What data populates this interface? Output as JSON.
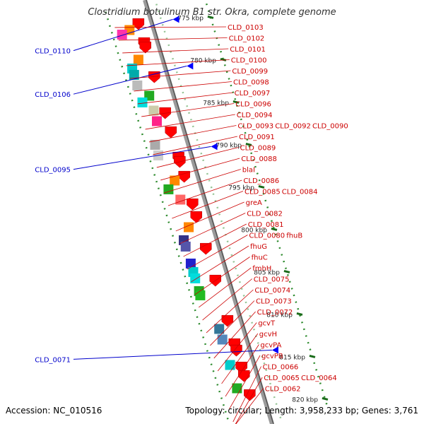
{
  "title": "Clostridium botulinum B1 str. Okra, complete genome",
  "footer": {
    "accession": "Accession: NC_010516",
    "summary": "Topology: circular; Length: 3,958,233 bp; Genes: 3,761"
  },
  "colors": {
    "backbone": "#9a9a9a",
    "kbp_dots": "#2e8b2e",
    "gene_label": "#cc0000",
    "left_label": "#0000cc",
    "cds_arrow": "#ff0000"
  },
  "ticks": [
    {
      "label": "775 kbp"
    },
    {
      "label": "780 kbp"
    },
    {
      "label": "785 kbp"
    },
    {
      "label": "790 kbp"
    },
    {
      "label": "795 kbp"
    },
    {
      "label": "800 kbp"
    },
    {
      "label": "805 kbp"
    },
    {
      "label": "810 kbp"
    },
    {
      "label": "815 kbp"
    },
    {
      "label": "820 kbp"
    }
  ],
  "left_labels": [
    {
      "text": "CLD_0110"
    },
    {
      "text": "CLD_0106"
    },
    {
      "text": "CLD_0095"
    },
    {
      "text": "CLD_0071"
    }
  ],
  "gene_labels": [
    "CLD_0103",
    "CLD_0102",
    "CLD_0101",
    "CLD_0100",
    "CLD_0099",
    "CLD_0098",
    "CLD_0097",
    "CLD_0096",
    "CLD_0094",
    "CLD_0093",
    "CLD_0092",
    "CLD_0090",
    "CLD_0091",
    "CLD_0089",
    "CLD_0088",
    "blaI",
    "CLD_0086",
    "CLD_0085",
    "CLD_0084",
    "greA",
    "CLD_0082",
    "CLD_0081",
    "CLD_0080",
    "fhuB",
    "fhuG",
    "fhuC",
    "fmhH",
    "CLD_0075",
    "CLD_0074",
    "CLD_0073",
    "CLD_0072",
    "gcvT",
    "gcvH",
    "gcvPA",
    "gcvPB",
    "CLD_0066",
    "CLD_0065",
    "CLD_0064",
    "CLD_0062"
  ],
  "features": [
    {
      "t": 0.045,
      "color": "#ff0000",
      "track": 0
    },
    {
      "t": 0.055,
      "color": "#ff8800",
      "track": 1
    },
    {
      "t": 0.06,
      "color": "#ff33aa",
      "track": 2
    },
    {
      "t": 0.09,
      "color": "#ff0000",
      "track": 0
    },
    {
      "t": 0.1,
      "color": "#ff0000",
      "track": 0
    },
    {
      "t": 0.125,
      "color": "#ff8800",
      "track": 1
    },
    {
      "t": 0.14,
      "color": "#00cccc",
      "track": 2
    },
    {
      "t": 0.155,
      "color": "#00aaaa",
      "track": 2
    },
    {
      "t": 0.17,
      "color": "#ff0000",
      "track": 0
    },
    {
      "t": 0.18,
      "color": "#bbbbbb",
      "track": 2
    },
    {
      "t": 0.21,
      "color": "#22aa22",
      "track": 1
    },
    {
      "t": 0.22,
      "color": "#00dddd",
      "track": 2
    },
    {
      "t": 0.245,
      "color": "#ccccaa",
      "track": 1
    },
    {
      "t": 0.255,
      "color": "#ff0000",
      "track": 0
    },
    {
      "t": 0.27,
      "color": "#ff2288",
      "track": 1
    },
    {
      "t": 0.3,
      "color": "#ff0000",
      "track": 0
    },
    {
      "t": 0.32,
      "color": "#aaaaaa",
      "track": 2
    },
    {
      "t": 0.345,
      "color": "#cccccc",
      "track": 2
    },
    {
      "t": 0.36,
      "color": "#ff0000",
      "track": 0
    },
    {
      "t": 0.37,
      "color": "#ff0000",
      "track": 0
    },
    {
      "t": 0.405,
      "color": "#ff0000",
      "track": 0
    },
    {
      "t": 0.41,
      "color": "#ff8800",
      "track": 1
    },
    {
      "t": 0.425,
      "color": "#22aa22",
      "track": 2
    },
    {
      "t": 0.455,
      "color": "#ff6666",
      "track": 1
    },
    {
      "t": 0.47,
      "color": "#ff0000",
      "track": 0
    },
    {
      "t": 0.5,
      "color": "#ff0000",
      "track": 0
    },
    {
      "t": 0.52,
      "color": "#ff8800",
      "track": 1
    },
    {
      "t": 0.545,
      "color": "#333388",
      "track": 2
    },
    {
      "t": 0.56,
      "color": "#5555aa",
      "track": 2
    },
    {
      "t": 0.575,
      "color": "#ff0000",
      "track": 0
    },
    {
      "t": 0.6,
      "color": "#2222cc",
      "track": 2
    },
    {
      "t": 0.62,
      "color": "#00cccc",
      "track": 2
    },
    {
      "t": 0.635,
      "color": "#00dddd",
      "track": 2
    },
    {
      "t": 0.65,
      "color": "#ff0000",
      "track": 0
    },
    {
      "t": 0.665,
      "color": "#22aa22",
      "track": 2
    },
    {
      "t": 0.675,
      "color": "#22bb22",
      "track": 2
    },
    {
      "t": 0.745,
      "color": "#ff0000",
      "track": 0
    },
    {
      "t": 0.76,
      "color": "#337799",
      "track": 1
    },
    {
      "t": 0.785,
      "color": "#5588bb",
      "track": 1
    },
    {
      "t": 0.8,
      "color": "#ff0000",
      "track": 0
    },
    {
      "t": 0.815,
      "color": "#ff0000",
      "track": 0
    },
    {
      "t": 0.845,
      "color": "#00cccc",
      "track": 1
    },
    {
      "t": 0.855,
      "color": "#ff0000",
      "track": 0
    },
    {
      "t": 0.875,
      "color": "#ff0000",
      "track": 0
    },
    {
      "t": 0.9,
      "color": "#22aa22",
      "track": 1
    },
    {
      "t": 0.92,
      "color": "#ff0000",
      "track": 0
    }
  ]
}
